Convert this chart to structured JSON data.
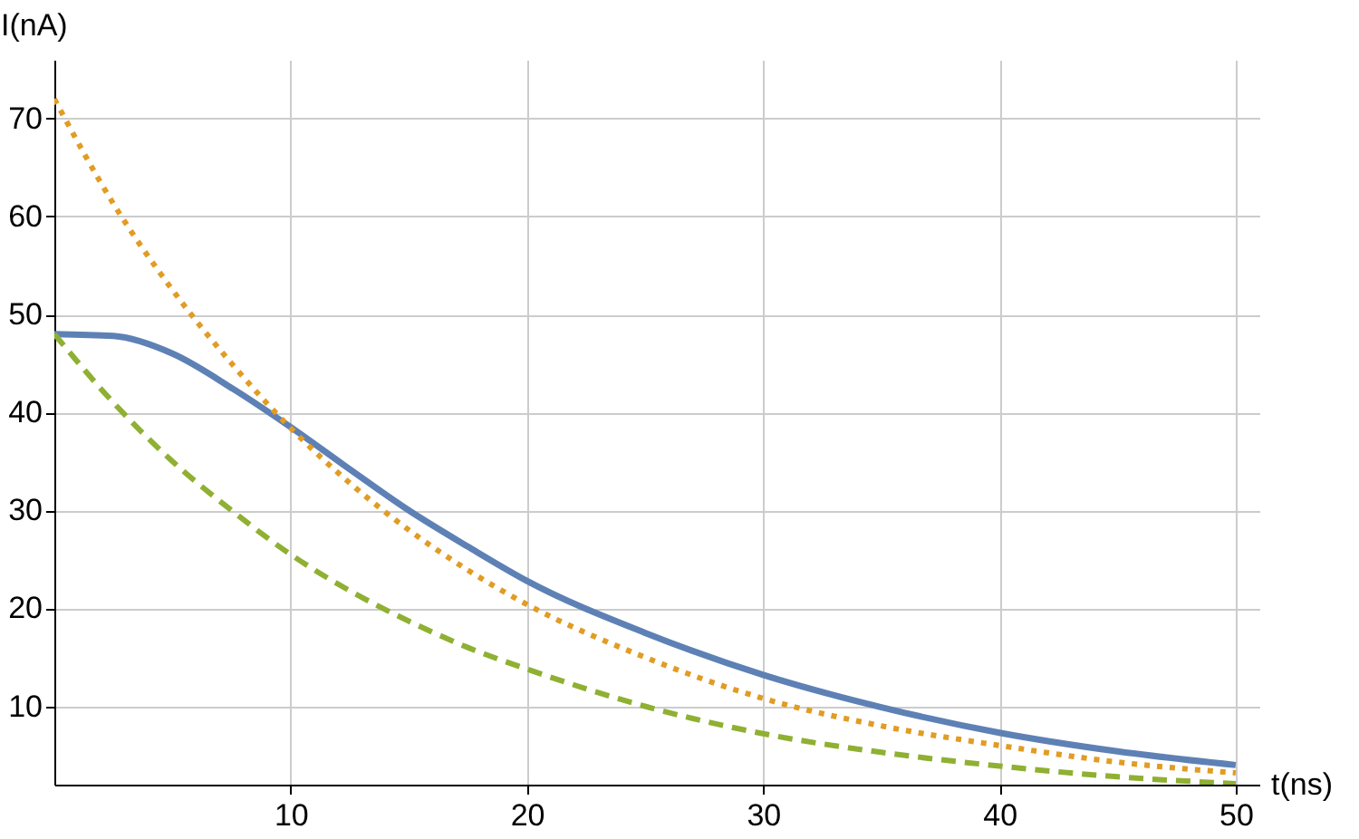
{
  "chart_data": {
    "type": "line",
    "xlabel": "t(ns)",
    "ylabel": "I(nA)",
    "x": [
      0,
      2.5,
      5,
      7.5,
      10,
      12.5,
      15,
      17.5,
      20,
      25,
      30,
      35,
      40,
      45,
      50
    ],
    "series": [
      {
        "color": "#5e81b5",
        "line_style": "solid",
        "values": [
          48,
          47.8,
          46,
          42.5,
          38.5,
          34.2,
          30,
          26.3,
          22.8,
          17.5,
          13.2,
          9.9,
          7.3,
          5.4,
          4
        ]
      },
      {
        "color": "#e19c24",
        "line_style": "dotted",
        "values": [
          72,
          61.3,
          52.5,
          45,
          38.4,
          32.8,
          28,
          23.9,
          20.4,
          15,
          10.8,
          8,
          6,
          4.3,
          3.2
        ]
      },
      {
        "color": "#8fb032",
        "line_style": "dashed",
        "values": [
          48,
          41,
          35,
          30,
          25.5,
          21.8,
          18.7,
          16,
          13.8,
          10,
          7.2,
          5.3,
          3.9,
          2.8,
          2.1
        ]
      }
    ],
    "xlim": [
      0,
      51
    ],
    "ylim": [
      2,
      76
    ],
    "xticks": [
      10,
      20,
      30,
      40,
      50
    ],
    "yticks": [
      10,
      20,
      30,
      40,
      50,
      60,
      70
    ],
    "grid": true,
    "marker": "none"
  }
}
